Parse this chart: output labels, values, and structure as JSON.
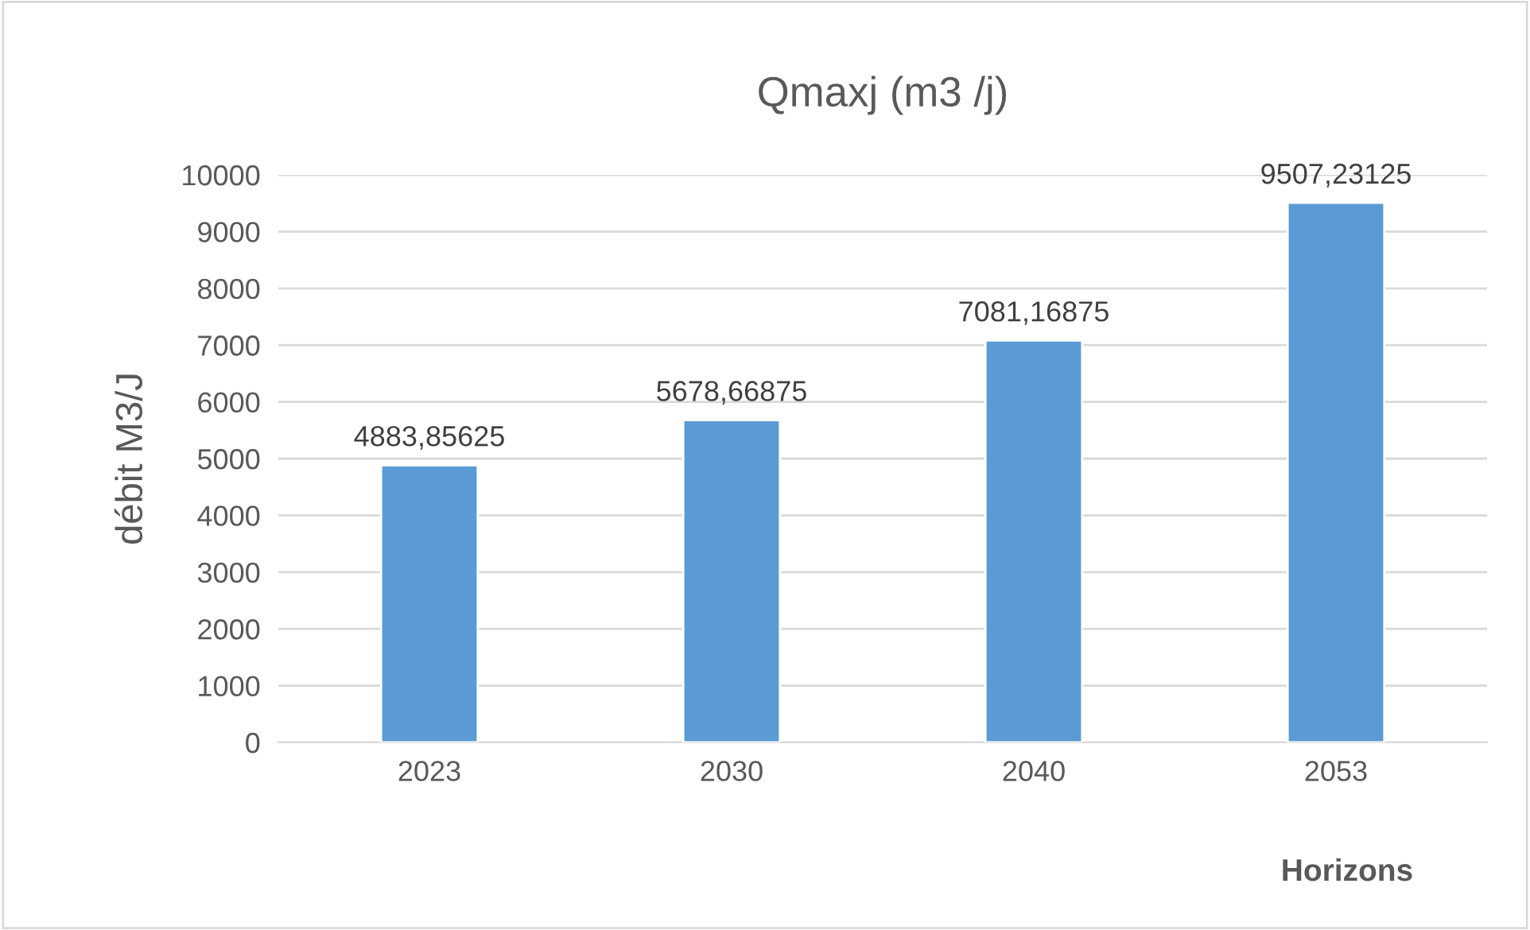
{
  "chart_data": {
    "type": "bar",
    "title": "Qmaxj (m3 /j)",
    "xlabel": "Horizons",
    "ylabel": "débit M3/J",
    "categories": [
      "2023",
      "2030",
      "2040",
      "2053"
    ],
    "values": [
      4883.85625,
      5678.66875,
      7081.16875,
      9507.23125
    ],
    "value_labels": [
      "4883,85625",
      "5678,66875",
      "7081,16875",
      "9507,23125"
    ],
    "color": "#5b9bd5",
    "ylim": [
      0,
      10000
    ],
    "yticks": [
      0,
      1000,
      2000,
      3000,
      4000,
      5000,
      6000,
      7000,
      8000,
      9000,
      10000
    ],
    "grid": "y",
    "legend": false
  }
}
